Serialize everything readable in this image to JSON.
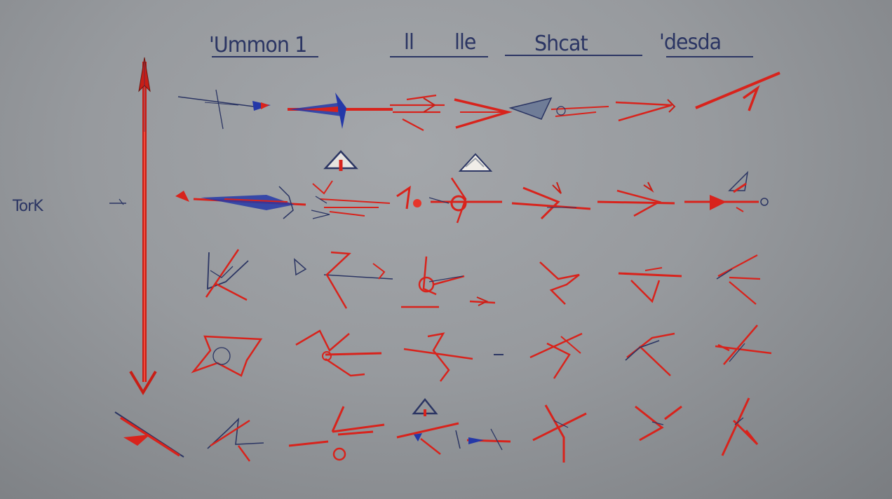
{
  "header": {
    "labels": [
      "'Ummon 1",
      "ll",
      "lle",
      "Shcat",
      "'desda"
    ]
  },
  "side_label": "TorK",
  "colors": {
    "accent_red": "#d8231c",
    "ink_navy": "#2b3563",
    "blue": "#2438a8"
  }
}
